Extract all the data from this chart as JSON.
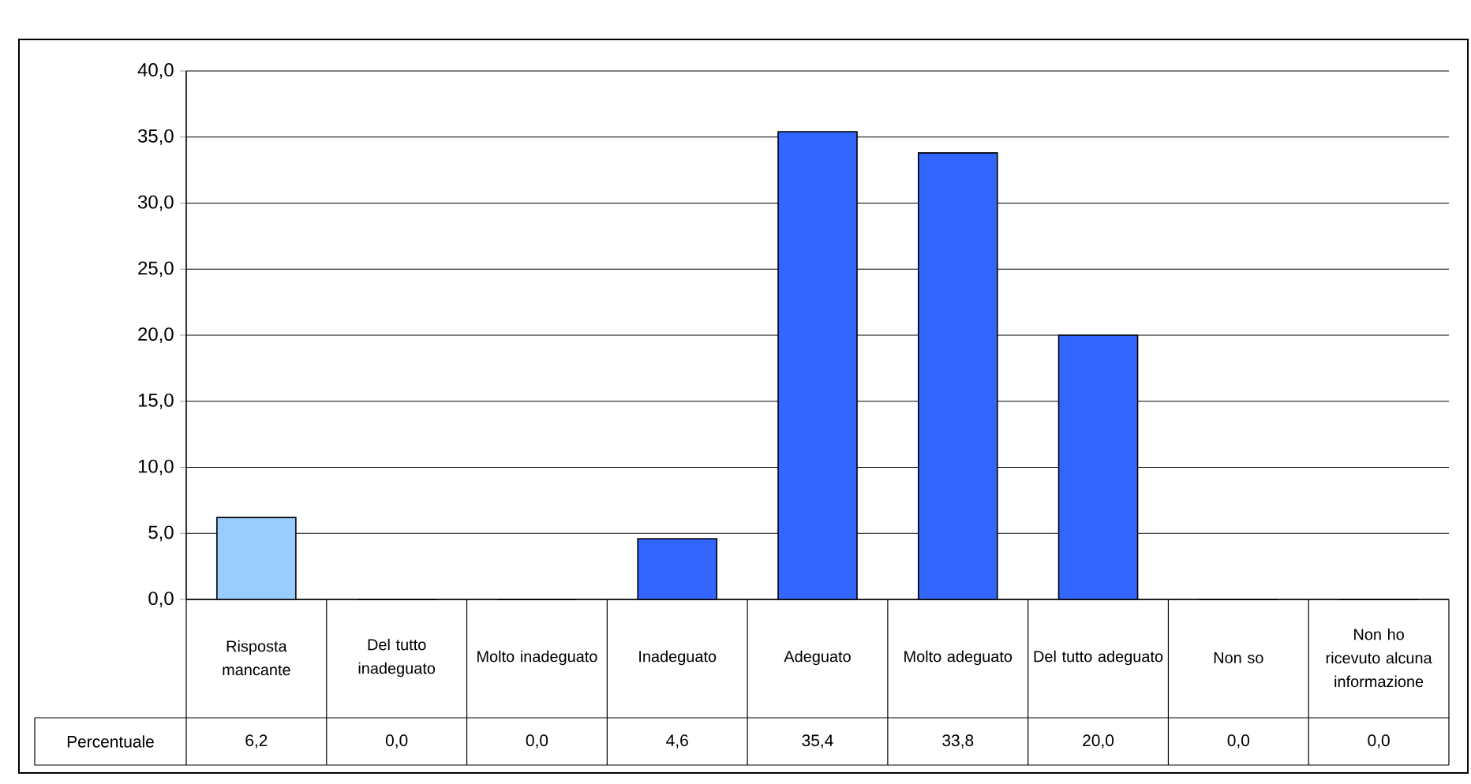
{
  "chart_data": {
    "type": "bar",
    "categories": [
      "Risposta mancante",
      "Del tutto inadeguato",
      "Molto inadeguato",
      "Inadeguato",
      "Adeguato",
      "Molto adeguato",
      "Del tutto adeguato",
      "Non so",
      "Non ho ricevuto alcuna informazione"
    ],
    "series": [
      {
        "name": "Percentuale",
        "values": [
          6.2,
          0.0,
          0.0,
          4.6,
          35.4,
          33.8,
          20.0,
          0.0,
          0.0
        ],
        "value_labels": [
          "6,2",
          "0,0",
          "0,0",
          "4,6",
          "35,4",
          "33,8",
          "20,0",
          "0,0",
          "0,0"
        ],
        "colors": [
          "#99ccff",
          "#3366ff",
          "#3366ff",
          "#3366ff",
          "#3366ff",
          "#3366ff",
          "#3366ff",
          "#3366ff",
          "#3366ff"
        ]
      }
    ],
    "ylim": [
      0,
      40
    ],
    "yticks": [
      {
        "value": 0,
        "label": "0,0"
      },
      {
        "value": 5,
        "label": "5,0"
      },
      {
        "value": 10,
        "label": "10,0"
      },
      {
        "value": 15,
        "label": "15,0"
      },
      {
        "value": 20,
        "label": "20,0"
      },
      {
        "value": 25,
        "label": "25,0"
      },
      {
        "value": 30,
        "label": "30,0"
      },
      {
        "value": 35,
        "label": "35,0"
      },
      {
        "value": 40,
        "label": "40,0"
      }
    ],
    "grid": "y"
  }
}
